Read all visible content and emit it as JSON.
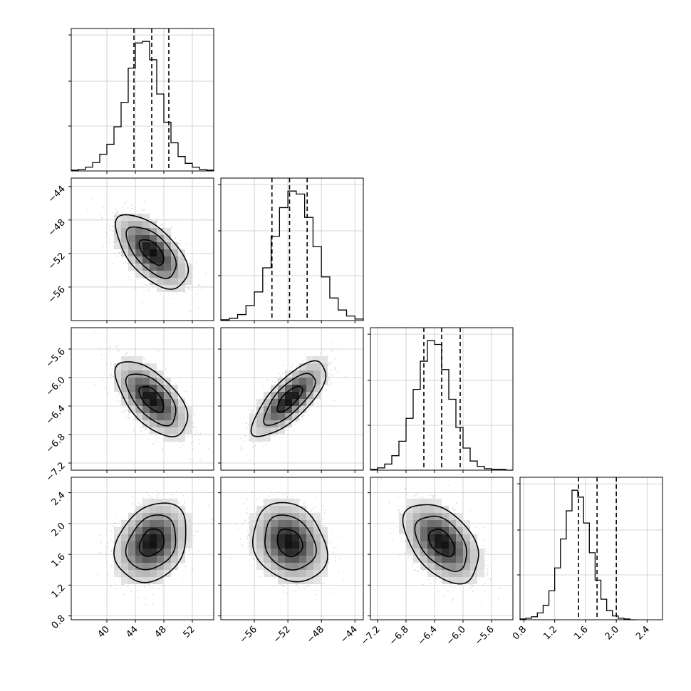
{
  "chart_data": {
    "type": "corner",
    "title": "",
    "grid": true,
    "quantiles": [
      0.16,
      0.5,
      0.84
    ],
    "parameters": [
      {
        "range": [
          35,
          55
        ],
        "ticks": [
          40,
          44,
          48,
          52
        ],
        "tick_labels": [
          "40",
          "44",
          "48",
          "52"
        ],
        "hist_edges_start": 35,
        "hist_bin_width": 1,
        "hist_counts": [
          1,
          2,
          5,
          11,
          22,
          35,
          58,
          90,
          135,
          168,
          170,
          146,
          101,
          64,
          37,
          19,
          10,
          5,
          2,
          1
        ],
        "quantile_values": [
          43.8,
          46.3,
          48.7
        ]
      },
      {
        "range": [
          -60,
          -43
        ],
        "ticks": [
          -56,
          -52,
          -48,
          -44
        ],
        "tick_labels": [
          "−56",
          "−52",
          "−48",
          "−44"
        ],
        "hist_edges_start": -60,
        "hist_bin_width": 1,
        "hist_counts": [
          1,
          3,
          8,
          20,
          38,
          70,
          112,
          150,
          172,
          168,
          137,
          98,
          58,
          30,
          14,
          6,
          2
        ],
        "quantile_values": [
          -53.9,
          -51.8,
          -49.7
        ]
      },
      {
        "range": [
          -7.3,
          -5.3
        ],
        "ticks": [
          -7.2,
          -6.8,
          -6.4,
          -6.0,
          -5.6
        ],
        "tick_labels": [
          "−7.2",
          "−6.8",
          "−6.4",
          "−6.0",
          "−5.6"
        ],
        "hist_edges_start": -7.3,
        "hist_bin_width": 0.1,
        "hist_counts": [
          1,
          3,
          8,
          19,
          38,
          68,
          106,
          143,
          170,
          165,
          132,
          93,
          56,
          29,
          12,
          5,
          2,
          1,
          1,
          0
        ],
        "quantile_values": [
          -6.55,
          -6.3,
          -6.04
        ]
      },
      {
        "range": [
          0.75,
          2.6
        ],
        "ticks": [
          0.8,
          1.2,
          1.6,
          2.0,
          2.4
        ],
        "tick_labels": [
          "0.8",
          "1.2",
          "1.6",
          "2.0",
          "2.4"
        ],
        "hist_edges_start": 0.75,
        "hist_bin_width": 0.075,
        "hist_counts": [
          1,
          2,
          4,
          9,
          19,
          38,
          68,
          106,
          143,
          170,
          161,
          127,
          88,
          52,
          27,
          12,
          5,
          2,
          1,
          0
        ],
        "quantile_values": [
          1.51,
          1.75,
          2.0
        ]
      }
    ],
    "pairs": [
      {
        "row": 1,
        "col": 0,
        "mean": [
          46.3,
          -51.8
        ],
        "sd": [
          2.4,
          2.1
        ],
        "rho": -0.6
      },
      {
        "row": 2,
        "col": 0,
        "mean": [
          46.3,
          -6.3
        ],
        "sd": [
          2.4,
          0.25
        ],
        "rho": -0.6
      },
      {
        "row": 2,
        "col": 1,
        "mean": [
          -51.8,
          -6.3
        ],
        "sd": [
          2.1,
          0.25
        ],
        "rho": 0.75
      },
      {
        "row": 3,
        "col": 0,
        "mean": [
          46.3,
          1.75
        ],
        "sd": [
          2.4,
          0.245
        ],
        "rho": 0.25
      },
      {
        "row": 3,
        "col": 1,
        "mean": [
          -51.8,
          1.75
        ],
        "sd": [
          2.1,
          0.245
        ],
        "rho": -0.2
      },
      {
        "row": 3,
        "col": 2,
        "mean": [
          -6.3,
          1.75
        ],
        "sd": [
          0.25,
          0.245
        ],
        "rho": -0.45
      }
    ]
  }
}
